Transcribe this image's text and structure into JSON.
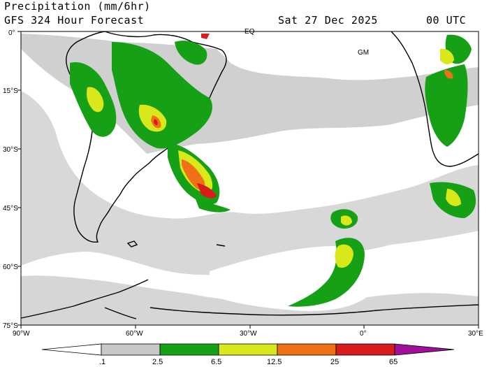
{
  "header": {
    "title": "Precipitation (mm/6hr)",
    "model": "GFS 324 Hour Forecast",
    "valid_date": "Sat 27 Dec 2025",
    "valid_time": "00 UTC"
  },
  "map": {
    "type": "precipitation map",
    "region": "South America / South Atlantic",
    "lon_range": [
      -90,
      30
    ],
    "lat_range": [
      -75,
      0
    ],
    "markers": [
      "EQ",
      "GM"
    ],
    "lat_labels": [
      "0°",
      "15°S",
      "30°S",
      "45°S",
      "60°S",
      "75°S"
    ],
    "lon_labels": [
      "90°W",
      "60°W",
      "30°W",
      "0°",
      "30°E"
    ]
  },
  "legend": {
    "ticks": [
      ".1",
      "2.5",
      "6.5",
      "12.5",
      "25",
      "65"
    ],
    "bins": [
      {
        "color": "#ffffff"
      },
      {
        "color": "#c8c8c8"
      },
      {
        "color": "#16a016"
      },
      {
        "color": "#d8e81a"
      },
      {
        "color": "#f07018"
      },
      {
        "color": "#d81c1c"
      },
      {
        "color": "#a0109a"
      }
    ]
  },
  "colors": {
    "coast": "#000000",
    "light_precip": "#c8c8c8",
    "moderate": "#16a016",
    "heavy": "#d8e81a",
    "very_heavy": "#f07018",
    "extreme": "#d81c1c"
  }
}
